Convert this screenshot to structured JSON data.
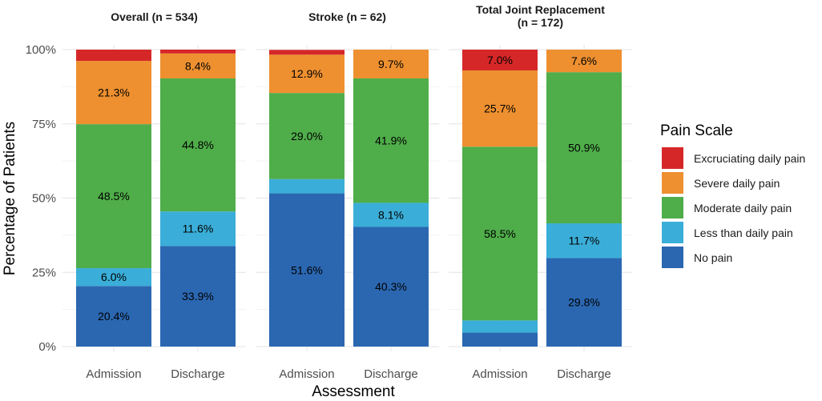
{
  "chart_data": {
    "type": "bar",
    "stacked": true,
    "xlabel": "Assessment",
    "ylabel": "Percentage of Patients",
    "ylim": [
      0,
      100
    ],
    "yticks": [
      "0%",
      "25%",
      "50%",
      "75%",
      "100%"
    ],
    "categories": [
      "Admission",
      "Discharge"
    ],
    "legend": {
      "title": "Pain Scale",
      "position": "right",
      "items": [
        {
          "key": "excruciating",
          "label": "Excruciating daily pain",
          "color": "#d62728"
        },
        {
          "key": "severe",
          "label": "Severe daily pain",
          "color": "#ee9030"
        },
        {
          "key": "moderate",
          "label": "Moderate daily pain",
          "color": "#4fad4a"
        },
        {
          "key": "less",
          "label": "Less than daily pain",
          "color": "#3aaed8"
        },
        {
          "key": "none",
          "label": "No pain",
          "color": "#2b67b1"
        }
      ]
    },
    "stack_order": [
      "none",
      "less",
      "moderate",
      "severe",
      "excruciating"
    ],
    "panels": [
      {
        "title_lines": [
          "Overall (n = 534)"
        ],
        "bars": [
          {
            "category": "Admission",
            "values": {
              "none": 20.4,
              "less": 6.0,
              "moderate": 48.5,
              "severe": 21.3,
              "excruciating": 3.8
            },
            "labels": {
              "none": "20.4%",
              "less": "6.0%",
              "moderate": "48.5%",
              "severe": "21.3%",
              "excruciating": ""
            }
          },
          {
            "category": "Discharge",
            "values": {
              "none": 33.9,
              "less": 11.6,
              "moderate": 44.8,
              "severe": 8.4,
              "excruciating": 1.3
            },
            "labels": {
              "none": "33.9%",
              "less": "11.6%",
              "moderate": "44.8%",
              "severe": "8.4%",
              "excruciating": ""
            }
          }
        ]
      },
      {
        "title_lines": [
          "Stroke (n = 62)"
        ],
        "bars": [
          {
            "category": "Admission",
            "values": {
              "none": 51.6,
              "less": 4.8,
              "moderate": 29.0,
              "severe": 12.9,
              "excruciating": 1.6
            },
            "labels": {
              "none": "51.6%",
              "less": "",
              "moderate": "29.0%",
              "severe": "12.9%",
              "excruciating": ""
            }
          },
          {
            "category": "Discharge",
            "values": {
              "none": 40.3,
              "less": 8.1,
              "moderate": 41.9,
              "severe": 9.7,
              "excruciating": 0
            },
            "labels": {
              "none": "40.3%",
              "less": "8.1%",
              "moderate": "41.9%",
              "severe": "9.7%",
              "excruciating": ""
            }
          }
        ]
      },
      {
        "title_lines": [
          "Total Joint Replacement",
          "(n = 172)"
        ],
        "bars": [
          {
            "category": "Admission",
            "values": {
              "none": 4.7,
              "less": 4.1,
              "moderate": 58.5,
              "severe": 25.7,
              "excruciating": 7.0
            },
            "labels": {
              "none": "",
              "less": "",
              "moderate": "58.5%",
              "severe": "25.7%",
              "excruciating": "7.0%"
            }
          },
          {
            "category": "Discharge",
            "values": {
              "none": 29.8,
              "less": 11.7,
              "moderate": 50.9,
              "severe": 7.6,
              "excruciating": 0
            },
            "labels": {
              "none": "29.8%",
              "less": "11.7%",
              "moderate": "50.9%",
              "severe": "7.6%",
              "excruciating": ""
            }
          }
        ]
      }
    ]
  }
}
